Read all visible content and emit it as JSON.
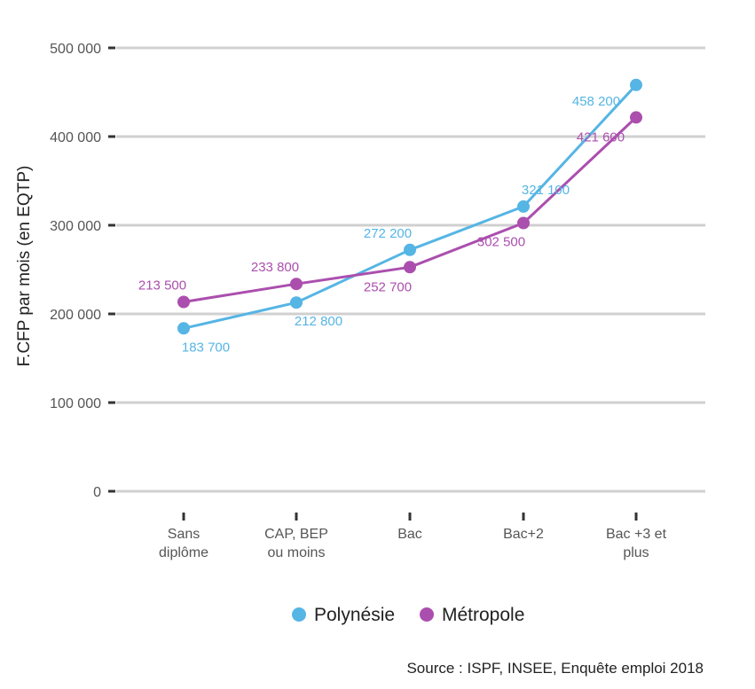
{
  "chart_data": {
    "type": "line",
    "ylabel": "F.CFP par mois (en EQTP)",
    "ylim": [
      0,
      500000
    ],
    "yticks": [
      {
        "value": 0,
        "label": "0"
      },
      {
        "value": 100000,
        "label": "100 000"
      },
      {
        "value": 200000,
        "label": "200 000"
      },
      {
        "value": 300000,
        "label": "300 000"
      },
      {
        "value": 400000,
        "label": "400 000"
      },
      {
        "value": 500000,
        "label": "500 000"
      }
    ],
    "categories": [
      [
        "Sans",
        "diplôme"
      ],
      [
        "CAP, BEP",
        "ou moins"
      ],
      [
        "Bac"
      ],
      [
        "Bac+2"
      ],
      [
        "Bac +3 et",
        "plus"
      ]
    ],
    "grid": true,
    "legend_position": "bottom",
    "series": [
      {
        "name": "Polynésie",
        "color": "#55b5e4",
        "values": [
          183700,
          212800,
          272200,
          321100,
          458200
        ],
        "labels": [
          "183 700",
          "212 800",
          "272 200",
          "321 100",
          "458 200"
        ]
      },
      {
        "name": "Métropole",
        "color": "#ab4fae",
        "values": [
          213500,
          233800,
          252700,
          302500,
          421600
        ],
        "labels": [
          "213 500",
          "233 800",
          "252 700",
          "302 500",
          "421 600"
        ]
      }
    ],
    "source": "Source : ISPF, INSEE, Enquête emploi 2018"
  }
}
